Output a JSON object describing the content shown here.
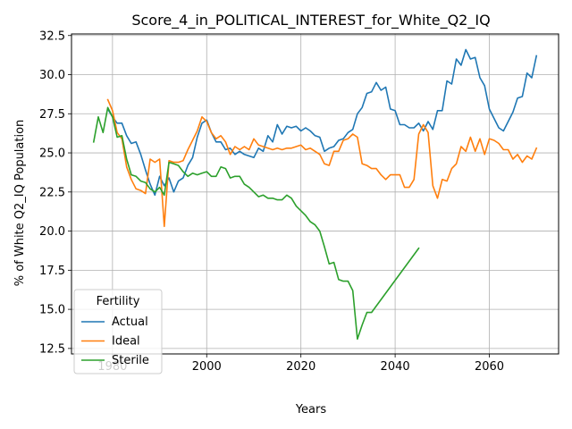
{
  "chart_data": {
    "type": "line",
    "title": "Score_4_in_POLITICAL_INTEREST_for_White_Q2_IQ",
    "xlabel": "Years",
    "ylabel": "% of White Q2_IQ Population",
    "xlim": [
      1971.3,
      2074.7
    ],
    "ylim": [
      12.15,
      32.6
    ],
    "xticks": [
      1980,
      2000,
      2020,
      2040,
      2060
    ],
    "xtick_labels": [
      "1980",
      "2000",
      "2020",
      "2040",
      "2060"
    ],
    "yticks": [
      12.5,
      15.0,
      17.5,
      20.0,
      22.5,
      25.0,
      27.5,
      30.0,
      32.5
    ],
    "ytick_labels": [
      "12.5",
      "15.0",
      "17.5",
      "20.0",
      "22.5",
      "25.0",
      "27.5",
      "30.0",
      "32.5"
    ],
    "grid": true,
    "legend": {
      "title": "Fertility",
      "placement": "lower-left"
    },
    "series": [
      {
        "name": "Actual",
        "color": "#1f77b4",
        "x": [
          1979,
          1980,
          1981,
          1982,
          1983,
          1984,
          1985,
          1986,
          1987,
          1988,
          1989,
          1990,
          1991,
          1992,
          1993,
          1994,
          1995,
          1996,
          1997,
          1998,
          1999,
          2000,
          2001,
          2002,
          2003,
          2004,
          2005,
          2006,
          2007,
          2008,
          2009,
          2010,
          2011,
          2012,
          2013,
          2014,
          2015,
          2016,
          2017,
          2018,
          2019,
          2020,
          2021,
          2022,
          2023,
          2024,
          2025,
          2026,
          2027,
          2028,
          2029,
          2030,
          2031,
          2032,
          2033,
          2034,
          2035,
          2036,
          2037,
          2038,
          2039,
          2040,
          2041,
          2042,
          2043,
          2044,
          2045,
          2046,
          2047,
          2048,
          2049,
          2050,
          2051,
          2052,
          2053,
          2054,
          2055,
          2056,
          2057,
          2058,
          2059,
          2060,
          2061,
          2062,
          2063,
          2064,
          2065,
          2066,
          2067,
          2068,
          2069,
          2070
        ],
        "y": [
          27.8,
          27.3,
          26.9,
          26.9,
          26.1,
          25.6,
          25.7,
          24.9,
          23.9,
          23.0,
          22.3,
          23.5,
          22.9,
          23.4,
          22.5,
          23.2,
          23.4,
          24.2,
          24.7,
          26.0,
          26.9,
          27.1,
          26.3,
          25.7,
          25.7,
          25.2,
          25.3,
          24.9,
          25.1,
          24.9,
          24.8,
          24.7,
          25.3,
          25.1,
          26.1,
          25.7,
          26.8,
          26.2,
          26.7,
          26.6,
          26.7,
          26.4,
          26.6,
          26.4,
          26.1,
          26.0,
          25.1,
          25.3,
          25.4,
          25.8,
          25.9,
          26.3,
          26.5,
          27.5,
          27.9,
          28.8,
          28.9,
          29.5,
          29.0,
          29.2,
          27.8,
          27.7,
          26.8,
          26.8,
          26.6,
          26.6,
          26.9,
          26.4,
          27.0,
          26.5,
          27.7,
          27.7,
          29.6,
          29.4,
          31.0,
          30.6,
          31.6,
          31.0,
          31.1,
          29.8,
          29.3,
          27.8,
          27.2,
          26.6,
          26.4,
          27.0,
          27.6,
          28.5,
          28.6,
          30.1,
          29.8,
          31.2
        ]
      },
      {
        "name": "Ideal",
        "color": "#ff7f0e",
        "x": [
          1979,
          1980,
          1981,
          1982,
          1983,
          1984,
          1985,
          1986,
          1987,
          1988,
          1989,
          1990,
          1991,
          1992,
          1993,
          1994,
          1995,
          1996,
          1997,
          1998,
          1999,
          2000,
          2001,
          2002,
          2003,
          2004,
          2005,
          2006,
          2007,
          2008,
          2009,
          2010,
          2011,
          2012,
          2013,
          2014,
          2015,
          2016,
          2017,
          2018,
          2019,
          2020,
          2021,
          2022,
          2023,
          2024,
          2025,
          2026,
          2027,
          2028,
          2029,
          2030,
          2031,
          2032,
          2033,
          2034,
          2035,
          2036,
          2037,
          2038,
          2039,
          2040,
          2041,
          2042,
          2043,
          2044,
          2045,
          2046,
          2047,
          2048,
          2049,
          2050,
          2051,
          2052,
          2053,
          2054,
          2055,
          2056,
          2057,
          2058,
          2059,
          2060,
          2061,
          2062,
          2063,
          2064,
          2065,
          2066,
          2067,
          2068,
          2069,
          2070
        ],
        "y": [
          28.4,
          27.7,
          26.3,
          25.9,
          24.1,
          23.3,
          22.7,
          22.6,
          22.4,
          24.6,
          24.4,
          24.6,
          20.3,
          24.5,
          24.4,
          24.4,
          24.5,
          25.2,
          25.8,
          26.4,
          27.3,
          27.0,
          26.3,
          25.9,
          26.1,
          25.7,
          24.9,
          25.4,
          25.2,
          25.4,
          25.2,
          25.9,
          25.5,
          25.4,
          25.3,
          25.2,
          25.3,
          25.2,
          25.3,
          25.3,
          25.4,
          25.5,
          25.2,
          25.3,
          25.1,
          24.9,
          24.3,
          24.2,
          25.1,
          25.1,
          25.8,
          25.9,
          26.2,
          26.0,
          24.3,
          24.2,
          24.0,
          24.0,
          23.6,
          23.3,
          23.6,
          23.6,
          23.6,
          22.8,
          22.8,
          23.3,
          26.2,
          26.8,
          26.3,
          22.9,
          22.1,
          23.3,
          23.2,
          24.0,
          24.3,
          25.4,
          25.1,
          26.0,
          25.1,
          25.9,
          24.9,
          25.9,
          25.8,
          25.6,
          25.2,
          25.2,
          24.6,
          24.9,
          24.4,
          24.8,
          24.6,
          25.3
        ]
      },
      {
        "name": "Sterile",
        "color": "#2ca02c",
        "x": [
          1976,
          1977,
          1978,
          1979,
          1980,
          1981,
          1982,
          1983,
          1984,
          1985,
          1986,
          1987,
          1988,
          1989,
          1990,
          1991,
          1992,
          1993,
          1994,
          1995,
          1996,
          1997,
          1998,
          1999,
          2000,
          2001,
          2002,
          2003,
          2004,
          2005,
          2006,
          2007,
          2008,
          2009,
          2010,
          2011,
          2012,
          2013,
          2014,
          2015,
          2016,
          2017,
          2018,
          2019,
          2020,
          2021,
          2022,
          2023,
          2024,
          2025,
          2026,
          2027,
          2028,
          2029,
          2030,
          2031,
          2032,
          2033,
          2034,
          2035,
          2045
        ],
        "y": [
          25.7,
          27.3,
          26.3,
          27.9,
          27.3,
          26.0,
          26.1,
          24.6,
          23.6,
          23.5,
          23.2,
          23.1,
          22.7,
          22.5,
          22.8,
          22.3,
          24.4,
          24.3,
          24.2,
          23.8,
          23.5,
          23.7,
          23.6,
          23.7,
          23.8,
          23.5,
          23.5,
          24.1,
          24.0,
          23.4,
          23.5,
          23.5,
          23.0,
          22.8,
          22.5,
          22.2,
          22.3,
          22.1,
          22.1,
          22.0,
          22.0,
          22.3,
          22.1,
          21.6,
          21.3,
          21.0,
          20.6,
          20.4,
          20.0,
          19.0,
          17.9,
          18.0,
          16.9,
          16.8,
          16.8,
          16.2,
          13.1,
          14.0,
          14.8,
          14.8,
          18.9
        ]
      }
    ]
  }
}
